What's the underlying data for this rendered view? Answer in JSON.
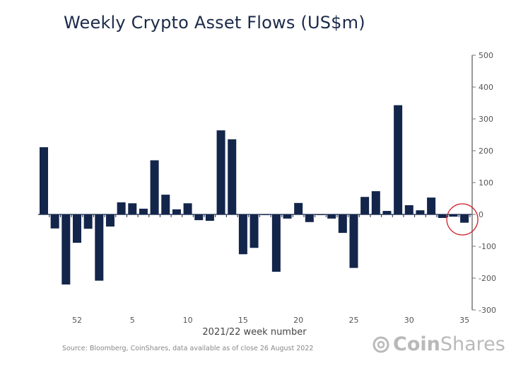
{
  "chart_data": {
    "type": "bar",
    "title": "Weekly Crypto Asset Flows (US$m)",
    "xlabel": "2021/22 week number",
    "ylabel": "",
    "ylim": [
      -300,
      500
    ],
    "yticks": [
      500,
      400,
      300,
      200,
      100,
      0,
      -100,
      -200,
      -300
    ],
    "grid": false,
    "y_axis_side": "right",
    "categories": [
      "49",
      "50",
      "51",
      "52",
      "1",
      "2",
      "3",
      "4",
      "5",
      "6",
      "7",
      "8",
      "9",
      "10",
      "11",
      "12",
      "13",
      "14",
      "15",
      "16",
      "17",
      "18",
      "19",
      "20",
      "21",
      "22",
      "23",
      "24",
      "25",
      "26",
      "27",
      "28",
      "29",
      "30",
      "31",
      "32",
      "33",
      "34",
      "35"
    ],
    "xtick_labels": [
      "52",
      "5",
      "10",
      "15",
      "20",
      "25",
      "30",
      "35"
    ],
    "values": [
      211,
      -44,
      -220,
      -89,
      -45,
      -208,
      -38,
      38,
      35,
      18,
      170,
      62,
      16,
      35,
      -18,
      -20,
      264,
      236,
      -125,
      -105,
      -2,
      -180,
      -13,
      36,
      -24,
      -2,
      -13,
      -58,
      -168,
      55,
      73,
      11,
      343,
      29,
      13,
      53,
      -11,
      -7,
      -26
    ],
    "bar_color": "#13254a",
    "highlight": {
      "category": "35",
      "marker": "red circle",
      "color": "#d0202a"
    }
  },
  "source": "Source: Bloomberg, CoinShares, data available as of close 26 August 2022",
  "logo": {
    "part1": "Coin",
    "part2": "Shares"
  }
}
